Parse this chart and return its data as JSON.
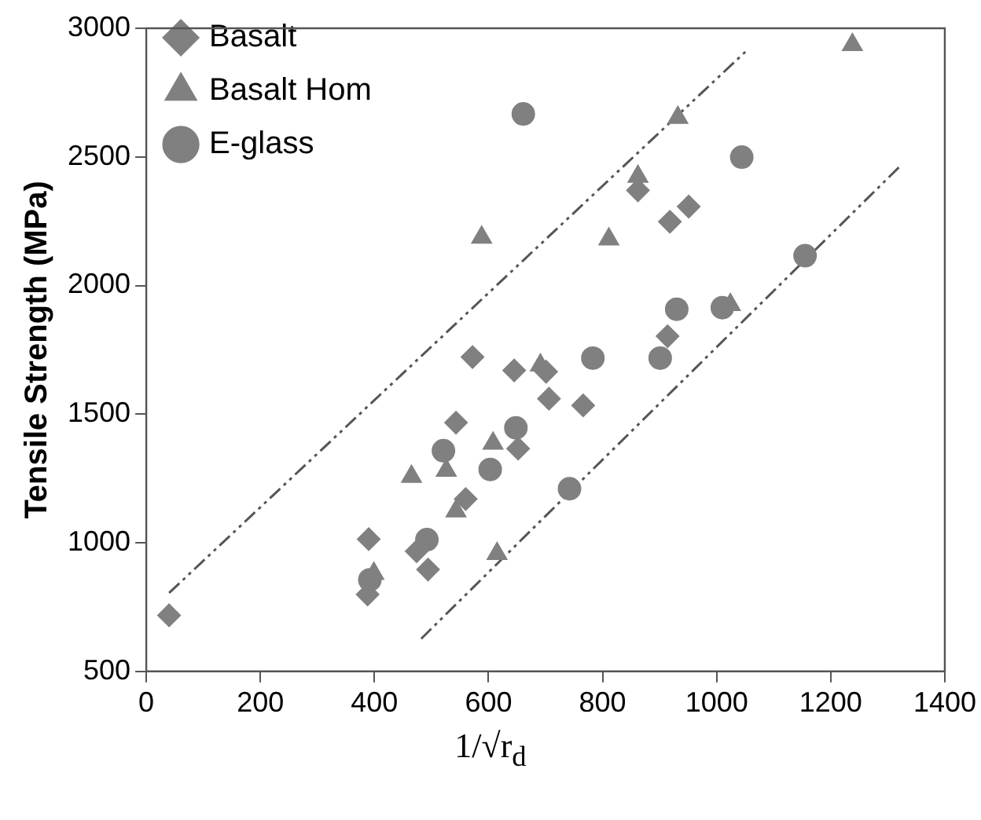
{
  "chart_data": {
    "type": "scatter",
    "xlabel": "1/√r$_{d}$",
    "ylabel": "Tensile Strength (MPa)",
    "xlim": [
      0,
      1400
    ],
    "xticks": [
      0,
      200,
      400,
      600,
      800,
      1000,
      1200,
      1400
    ],
    "ylim": [
      500,
      3000
    ],
    "yticks": [
      500,
      1000,
      1500,
      2000,
      2500,
      3000
    ],
    "grid": false,
    "legend": "top left",
    "series": [
      {
        "name": "Basalt",
        "color": "#808080",
        "marker": "diamond",
        "x": [
          40,
          388,
          390,
          474,
          494,
          543,
          560,
          572,
          645,
          652,
          701,
          706,
          766,
          862,
          914,
          918,
          951
        ],
        "values": [
          718,
          799,
          1014,
          967,
          896,
          1467,
          1170,
          1722,
          1670,
          1366,
          1665,
          1560,
          1534,
          2370,
          1803,
          2248,
          2307
        ]
      },
      {
        "name": "Basalt Hom",
        "color": "#808080",
        "marker": "triangle",
        "x": [
          399,
          465,
          526,
          543,
          588,
          608,
          615,
          691,
          811,
          862,
          932,
          1024,
          1238
        ],
        "values": [
          880,
          1257,
          1281,
          1123,
          2187,
          1386,
          957,
          1690,
          2180,
          2424,
          2653,
          1925,
          2936
        ]
      },
      {
        "name": "E-glass",
        "color": "#808080",
        "marker": "circle",
        "x": [
          392,
          492,
          521,
          603,
          648,
          661,
          742,
          783,
          901,
          930,
          1010,
          1044,
          1155
        ],
        "values": [
          856,
          1012,
          1358,
          1285,
          1447,
          2667,
          1210,
          1718,
          1718,
          1908,
          1914,
          2499,
          2116
        ]
      },
      {
        "type": "line",
        "color": "#555555",
        "line_style": "dashed",
        "marker": "none",
        "x": [
          40,
          1053
        ],
        "values": [
          805,
          2914
        ]
      },
      {
        "type": "line",
        "color": "#555555",
        "line_style": "dashed",
        "marker": "none",
        "x": [
          482,
          1322
        ],
        "values": [
          627,
          2465
        ]
      }
    ]
  }
}
